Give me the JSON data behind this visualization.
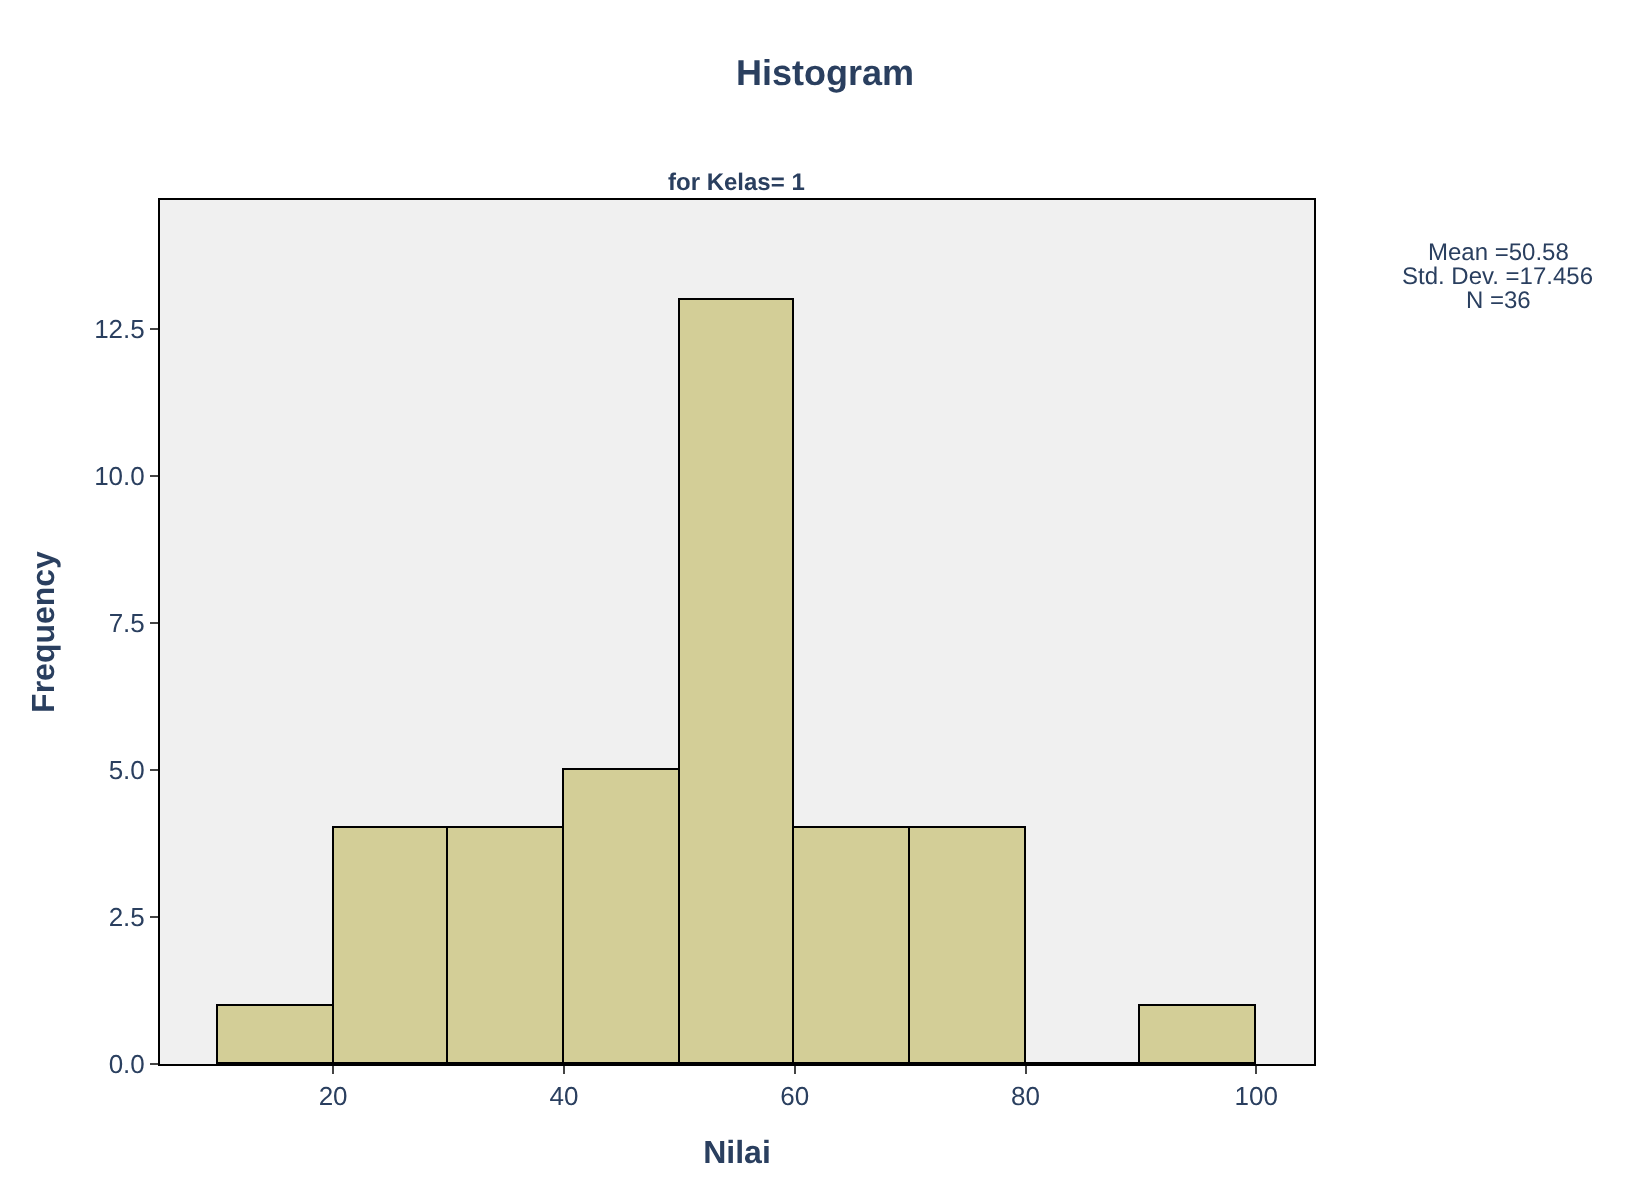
{
  "chart_data": {
    "type": "histogram",
    "title": "Histogram",
    "subtitle": "for Kelas= 1",
    "xlabel": "Nilai",
    "ylabel": "Frequency",
    "bins": [
      10,
      20,
      30,
      40,
      50,
      60,
      70,
      80,
      90,
      100
    ],
    "values": [
      1,
      4,
      4,
      5,
      13,
      4,
      4,
      0,
      1
    ],
    "color": "#d3ce97",
    "xlim": [
      5,
      105
    ],
    "ylim": [
      0,
      14.7
    ],
    "xticks": [
      20,
      40,
      60,
      80,
      100
    ],
    "yticks": [
      {
        "value": 0,
        "label": "0.0"
      },
      {
        "value": 2.5,
        "label": "2.5"
      },
      {
        "value": 5,
        "label": "5.0"
      },
      {
        "value": 7.5,
        "label": "7.5"
      },
      {
        "value": 10,
        "label": "10.0"
      },
      {
        "value": 12.5,
        "label": "12.5"
      }
    ],
    "annotations": [
      "Mean =50.58",
      "Std. Dev. =17.456",
      "N =36"
    ]
  }
}
